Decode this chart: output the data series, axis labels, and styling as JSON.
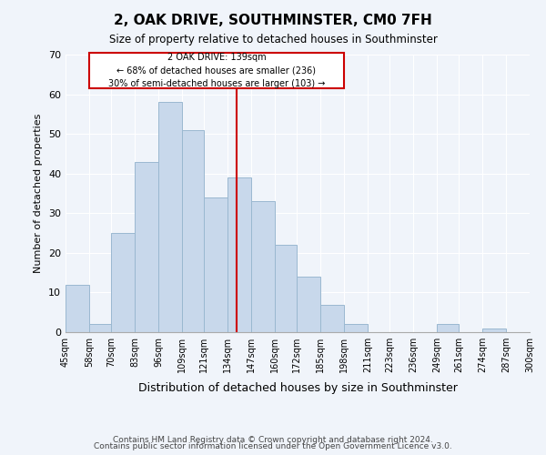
{
  "title": "2, OAK DRIVE, SOUTHMINSTER, CM0 7FH",
  "subtitle": "Size of property relative to detached houses in Southminster",
  "xlabel": "Distribution of detached houses by size in Southminster",
  "ylabel": "Number of detached properties",
  "footer_line1": "Contains HM Land Registry data © Crown copyright and database right 2024.",
  "footer_line2": "Contains public sector information licensed under the Open Government Licence v3.0.",
  "bin_labels": [
    "45sqm",
    "58sqm",
    "70sqm",
    "83sqm",
    "96sqm",
    "109sqm",
    "121sqm",
    "134sqm",
    "147sqm",
    "160sqm",
    "172sqm",
    "185sqm",
    "198sqm",
    "211sqm",
    "223sqm",
    "236sqm",
    "249sqm",
    "261sqm",
    "274sqm",
    "287sqm",
    "300sqm"
  ],
  "bin_edges": [
    45,
    58,
    70,
    83,
    96,
    109,
    121,
    134,
    147,
    160,
    172,
    185,
    198,
    211,
    223,
    236,
    249,
    261,
    274,
    287,
    300
  ],
  "bar_heights": [
    12,
    2,
    25,
    43,
    58,
    51,
    34,
    39,
    33,
    22,
    14,
    7,
    2,
    0,
    0,
    0,
    2,
    0,
    1,
    0
  ],
  "bar_color": "#c8d8eb",
  "bar_edge_color": "#9ab8d0",
  "property_line_x": 139,
  "property_line_color": "#cc0000",
  "annotation_title": "2 OAK DRIVE: 139sqm",
  "annotation_line1": "← 68% of detached houses are smaller (236)",
  "annotation_line2": "30% of semi-detached houses are larger (103) →",
  "annotation_box_edge": "#cc0000",
  "ylim": [
    0,
    70
  ],
  "yticks": [
    0,
    10,
    20,
    30,
    40,
    50,
    60,
    70
  ],
  "background_color": "#f0f4fa",
  "grid_color": "#ffffff"
}
